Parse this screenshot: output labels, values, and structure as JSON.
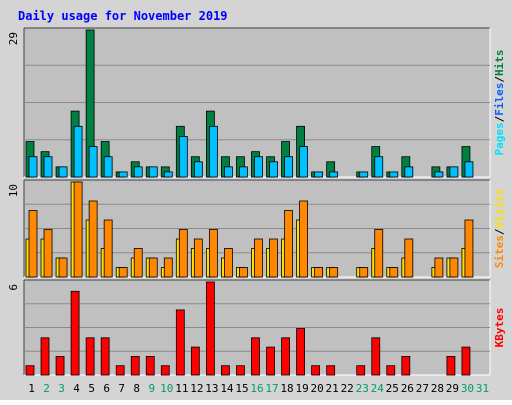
{
  "chart_data": {
    "type": "bar",
    "title": "Daily usage for November 2019",
    "categories": [
      "1",
      "2",
      "3",
      "4",
      "5",
      "6",
      "7",
      "8",
      "9",
      "10",
      "11",
      "12",
      "13",
      "14",
      "15",
      "16",
      "17",
      "18",
      "19",
      "20",
      "21",
      "22",
      "23",
      "24",
      "25",
      "26",
      "27",
      "28",
      "29",
      "30",
      "31"
    ],
    "weekend_days": [
      "2",
      "3",
      "9",
      "10",
      "16",
      "17",
      "23",
      "24",
      "30",
      "31"
    ],
    "colors": {
      "hits": "#008040",
      "files": "#00c0ff",
      "pages": "#00e0ff",
      "visits": "#ff8800",
      "sites": "#ffe000",
      "kbytes": "#ff0000",
      "plot_bg": "#c0c0c0",
      "frame_bg": "#d4d4d4",
      "title": "#0000ff",
      "weekend": "#00a060"
    },
    "panels": [
      {
        "id": "hits-files-pages",
        "max_label": "29",
        "ylim": [
          0,
          29
        ],
        "legend": [
          {
            "text": "Pages",
            "color": "#00e0ff"
          },
          {
            "text": "/",
            "color": "#000000"
          },
          {
            "text": "Files",
            "color": "#0060ff"
          },
          {
            "text": "/",
            "color": "#000000"
          },
          {
            "text": "Hits",
            "color": "#008040"
          }
        ],
        "series": [
          {
            "name": "Hits",
            "color": "#008040",
            "values": [
              7,
              5,
              2,
              13,
              29,
              7,
              1,
              3,
              2,
              2,
              10,
              4,
              13,
              4,
              4,
              5,
              4,
              7,
              10,
              1,
              3,
              0,
              1,
              6,
              1,
              4,
              0,
              2,
              2,
              6,
              0
            ]
          },
          {
            "name": "Files",
            "color": "#00c0ff",
            "values": [
              4,
              4,
              2,
              10,
              6,
              4,
              1,
              2,
              2,
              1,
              8,
              3,
              10,
              2,
              2,
              4,
              3,
              4,
              6,
              1,
              1,
              0,
              1,
              4,
              1,
              2,
              0,
              1,
              2,
              3,
              0
            ]
          }
        ]
      },
      {
        "id": "visits-sites",
        "max_label": "10",
        "ylim": [
          0,
          10
        ],
        "legend": [
          {
            "text": "Sites",
            "color": "#ff8800"
          },
          {
            "text": "/",
            "color": "#000000"
          },
          {
            "text": "Visits",
            "color": "#ffe000"
          }
        ],
        "series": [
          {
            "name": "Visits",
            "color": "#ffe000",
            "values": [
              4,
              4,
              2,
              10,
              6,
              3,
              1,
              2,
              2,
              1,
              4,
              3,
              3,
              2,
              1,
              3,
              3,
              4,
              6,
              1,
              1,
              0,
              1,
              3,
              1,
              2,
              0,
              1,
              2,
              3,
              0
            ]
          },
          {
            "name": "Sites",
            "color": "#ff8800",
            "values": [
              7,
              5,
              2,
              10,
              8,
              6,
              1,
              3,
              2,
              2,
              5,
              4,
              5,
              3,
              1,
              4,
              4,
              7,
              8,
              1,
              1,
              0,
              1,
              5,
              1,
              4,
              0,
              2,
              2,
              6,
              0
            ]
          }
        ]
      },
      {
        "id": "kbytes",
        "max_label": "6",
        "ylim": [
          0,
          6
        ],
        "legend": [
          {
            "text": "KBytes",
            "color": "#ff0000"
          }
        ],
        "series": [
          {
            "name": "KBytes",
            "color": "#ff0000",
            "values": [
              0.6,
              2.4,
              1.2,
              5.4,
              2.4,
              2.4,
              0.6,
              1.2,
              1.2,
              0.6,
              4.2,
              1.8,
              6,
              0.6,
              0.6,
              2.4,
              1.8,
              2.4,
              3,
              0.6,
              0.6,
              0,
              0.6,
              2.4,
              0.6,
              1.2,
              0,
              0,
              1.2,
              1.8,
              0
            ]
          }
        ]
      }
    ]
  }
}
